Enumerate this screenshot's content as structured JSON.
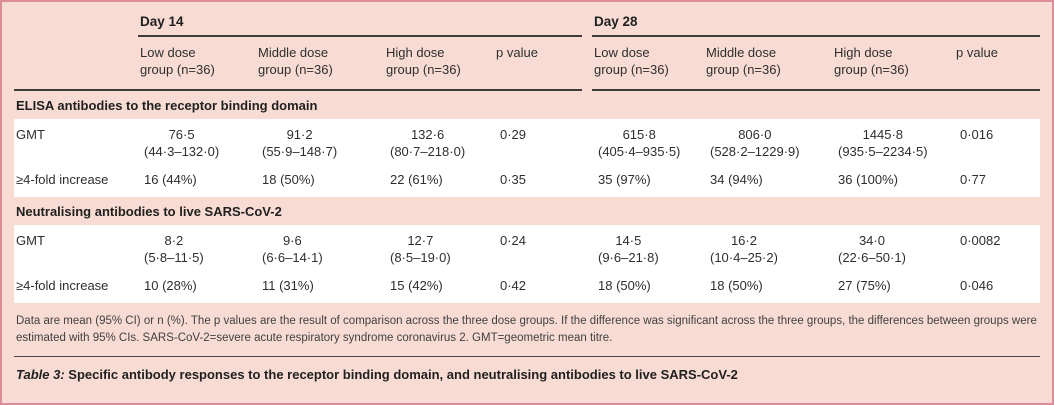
{
  "palette": {
    "background_pink": "#f8dcd4",
    "row_white": "#ffffff",
    "frame_border": "#db8e98",
    "rule_dark": "#3d3d3d",
    "text": "#2e2e2e"
  },
  "header": {
    "groups": [
      {
        "label": "Day 14",
        "columns": [
          "Low dose\ngroup (n=36)",
          "Middle dose\ngroup (n=36)",
          "High dose\ngroup (n=36)",
          "p value"
        ]
      },
      {
        "label": "Day 28",
        "columns": [
          "Low dose\ngroup (n=36)",
          "Middle dose\ngroup (n=36)",
          "High dose\ngroup (n=36)",
          "p value"
        ]
      }
    ]
  },
  "sections": [
    {
      "title": "ELISA antibodies to the receptor binding domain",
      "rows": [
        {
          "label": "GMT",
          "cells": [
            "76·5\n(44·3–132·0)",
            "91·2\n(55·9–148·7)",
            "132·6\n(80·7–218·0)",
            "0·29",
            "615·8\n(405·4–935·5)",
            "806·0\n(528·2–1229·9)",
            "1445·8\n(935·5–2234·5)",
            "0·016"
          ]
        },
        {
          "label": "≥4-fold increase",
          "cells": [
            "16 (44%)",
            "18 (50%)",
            "22 (61%)",
            "0·35",
            "35 (97%)",
            "34 (94%)",
            "36 (100%)",
            "0·77"
          ]
        }
      ]
    },
    {
      "title": "Neutralising antibodies to live SARS-CoV-2",
      "rows": [
        {
          "label": "GMT",
          "cells": [
            "8·2\n(5·8–11·5)",
            "9·6\n(6·6–14·1)",
            "12·7\n(8·5–19·0)",
            "0·24",
            "14·5\n(9·6–21·8)",
            "16·2\n(10·4–25·2)",
            "34·0\n(22·6–50·1)",
            "0·0082"
          ]
        },
        {
          "label": "≥4-fold increase",
          "cells": [
            "10 (28%)",
            "11 (31%)",
            "15 (42%)",
            "0·42",
            "18 (50%)",
            "18 (50%)",
            "27 (75%)",
            "0·046"
          ]
        }
      ]
    }
  ],
  "footnote": "Data are mean (95% CI) or n (%). The p values are the result of comparison across the three dose groups. If the difference was significant across the three groups, the differences between groups were estimated with 95% CIs. SARS-CoV-2=severe acute respiratory syndrome coronavirus 2. GMT=geometric mean titre.",
  "caption": {
    "prefix": "Table 3:",
    "text": "Specific antibody responses to the receptor binding domain, and neutralising antibodies to live SARS-CoV-2"
  }
}
